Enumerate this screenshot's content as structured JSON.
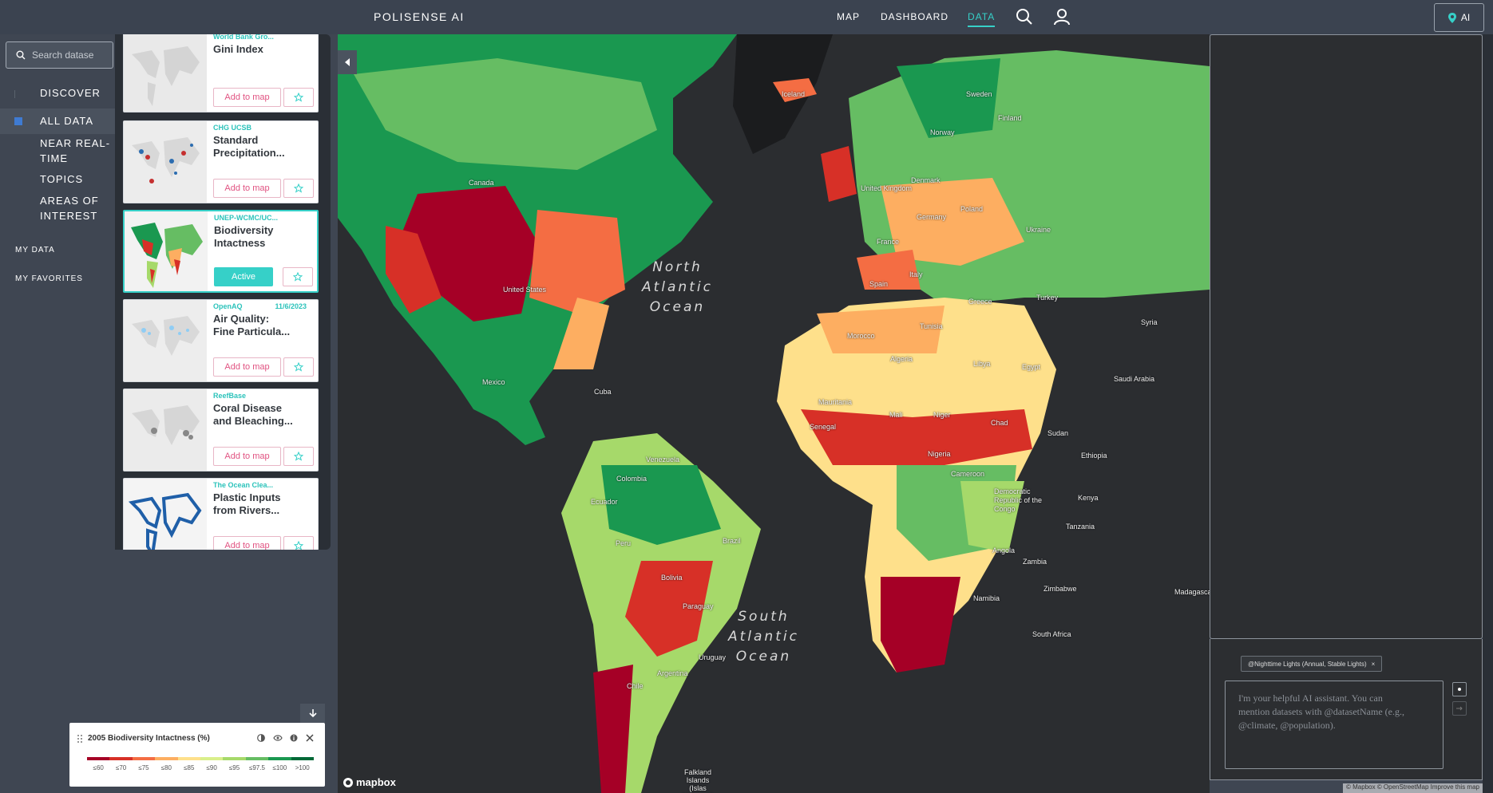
{
  "header": {
    "brand": "POLISENSE AI",
    "nav": [
      "MAP",
      "DASHBOARD",
      "DATA"
    ],
    "active_nav": "DATA",
    "ai_button": "AI"
  },
  "sidebar": {
    "search_placeholder": "Search datase",
    "items": [
      {
        "label": "DISCOVER"
      },
      {
        "label": "ALL DATA",
        "active": true
      },
      {
        "label_line1": "NEAR REAL-",
        "label_line2": "TIME"
      },
      {
        "label": "TOPICS"
      },
      {
        "label_line1": "AREAS OF",
        "label_line2": "INTEREST"
      }
    ],
    "my_data": "MY DATA",
    "my_favorites": "MY FAVORITES"
  },
  "cards": [
    {
      "source": "World Bank Gro...",
      "title_line1": "Gini Index",
      "title_line2": "",
      "button": "Add to map"
    },
    {
      "source": "CHG UCSB",
      "title_line1": "Standard",
      "title_line2": "Precipitation...",
      "button": "Add to map"
    },
    {
      "source": "UNEP-WCMC/UC...",
      "title_line1": "Biodiversity",
      "title_line2": "Intactness",
      "button": "Active",
      "active": true
    },
    {
      "source": "OpenAQ",
      "date": "11/6/2023",
      "title_line1": "Air Quality:",
      "title_line2": "Fine Particula...",
      "button": "Add to map"
    },
    {
      "source": "ReefBase",
      "title_line1": "Coral Disease",
      "title_line2": "and Bleaching...",
      "button": "Add to map"
    },
    {
      "source": "The Ocean Clea...",
      "title_line1": "Plastic Inputs",
      "title_line2": "from Rivers...",
      "button": "Add to map"
    }
  ],
  "map": {
    "oceans": {
      "north": [
        "North",
        "Atlantic",
        "Ocean"
      ],
      "south": [
        "South",
        "Atlantic",
        "Ocean"
      ]
    },
    "places": [
      "Canada",
      "United States",
      "Mexico",
      "Cuba",
      "Venezuela",
      "Colombia",
      "Ecuador",
      "Peru",
      "Brazil",
      "Bolivia",
      "Paraguay",
      "Uruguay",
      "Argentina",
      "Chile",
      "Iceland",
      "Sweden",
      "Finland",
      "Norway",
      "Denmark",
      "United Kingdom",
      "Germany",
      "Poland",
      "France",
      "Spain",
      "Italy",
      "Ukraine",
      "Greece",
      "Turkey",
      "Tunisia",
      "Morocco",
      "Algeria",
      "Libya",
      "Egypt",
      "Saudi Arabia",
      "Mauritania",
      "Mali",
      "Niger",
      "Chad",
      "Sudan",
      "Senegal",
      "Nigeria",
      "Cameroon",
      "Ethiopia",
      "Democratic Republic of the Congo",
      "Kenya",
      "Tanzania",
      "Angola",
      "Zambia",
      "Namibia",
      "Zimbabwe",
      "South Africa",
      "Madagascar",
      "Falkland Islands (Islas Malvinas)",
      "Syria"
    ],
    "logo": "mapbox",
    "attribution": "© Mapbox © OpenStreetMap Improve this map"
  },
  "legend": {
    "title": "2005 Biodiversity Intactness (%)",
    "labels": [
      "≤60",
      "≤70",
      "≤75",
      "≤80",
      "≤85",
      "≤90",
      "≤95",
      "≤97.5",
      "≤100",
      ">100"
    ],
    "colors": [
      "#a50026",
      "#d73027",
      "#f46d43",
      "#fdae61",
      "#fee08b",
      "#d9ef8b",
      "#a6d96a",
      "#66bd63",
      "#1a9850",
      "#006837"
    ]
  },
  "ai_panel": {
    "chip": "@Nighttime Lights (Annual, Stable Lights)",
    "chip_close": "×",
    "placeholder_l1": "I'm your helpful AI assistant. You can",
    "placeholder_l2": "mention datasets with @datasetName (e.g.,",
    "placeholder_l3": "@climate, @population)."
  },
  "colors": {
    "accent": "#36d0c8",
    "pink": "#e15281",
    "bg": "#3f4652"
  }
}
